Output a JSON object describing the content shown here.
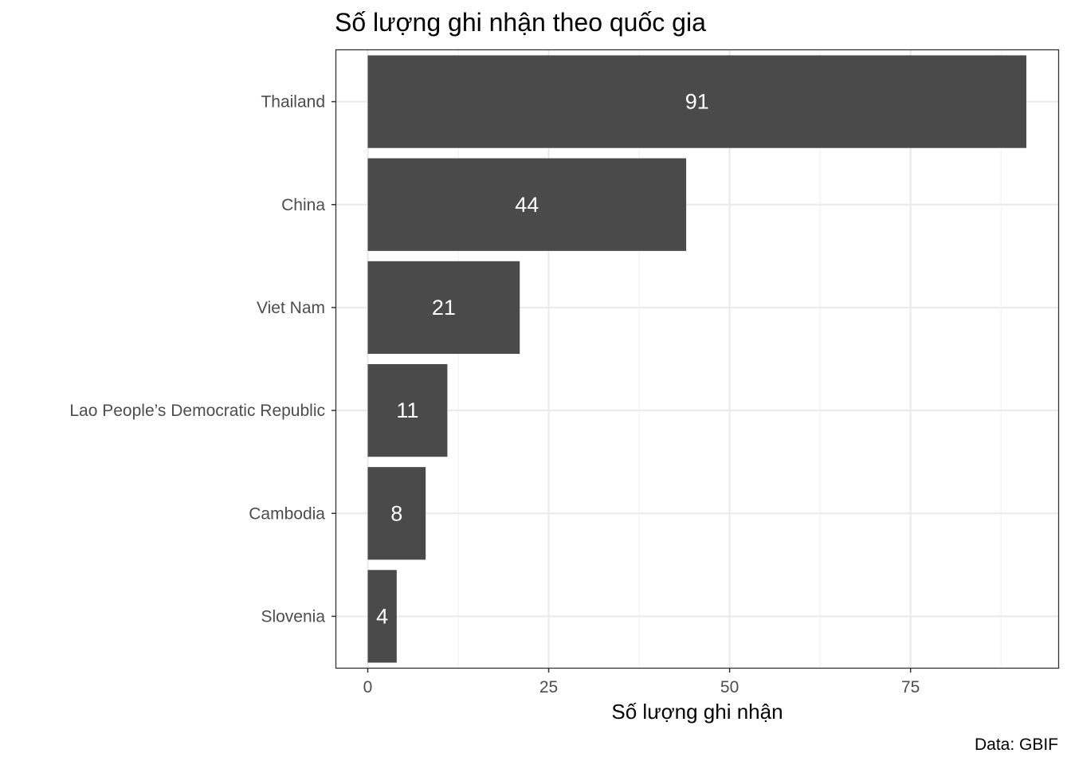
{
  "chart_data": {
    "type": "bar",
    "orientation": "horizontal",
    "title": "Số lượng ghi nhận theo quốc gia",
    "xlabel": "Số lượng ghi nhận",
    "ylabel": "",
    "caption": "Data: GBIF",
    "categories": [
      "Thailand",
      "China",
      "Viet Nam",
      "Lao People’s Democratic Republic",
      "Cambodia",
      "Slovenia"
    ],
    "values": [
      91,
      44,
      21,
      11,
      8,
      4
    ],
    "xlim": [
      0,
      95
    ],
    "x_ticks": [
      0,
      25,
      50,
      75
    ],
    "grid": true,
    "legend": "none",
    "colors": {
      "bar": "#4a4a4a",
      "bar_label": "#ffffff",
      "grid_major": "#ebebeb",
      "grid_minor": "#f2f2f2",
      "panel_border": "#333333",
      "tick_text": "#4d4d4d"
    }
  }
}
